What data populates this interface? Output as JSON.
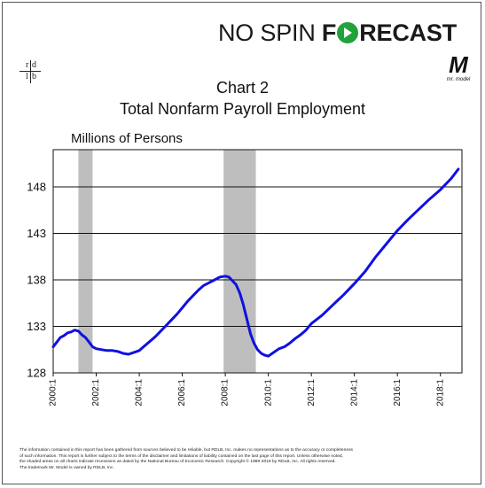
{
  "brand": {
    "part1": "NO SPIN ",
    "part2_a": "F",
    "part2_b": "RECAST",
    "accent_color": "#1fa33a",
    "logo_left_letters": [
      "r",
      "d",
      "l",
      "b"
    ],
    "logo_right": "M",
    "logo_right_sub": "mr. model"
  },
  "chart_data": {
    "type": "line",
    "title": "Chart 2",
    "subtitle": "Total Nonfarm Payroll Employment",
    "ylabel": "Millions of Persons",
    "xlabel": "",
    "ylim": [
      128,
      152
    ],
    "yticks": [
      128,
      133,
      138,
      143,
      148
    ],
    "xlim": [
      2000.0,
      2019.0
    ],
    "xticks": [
      {
        "label": "2000:1",
        "x": 2000.0
      },
      {
        "label": "2002:1",
        "x": 2002.0
      },
      {
        "label": "2004:1",
        "x": 2004.0
      },
      {
        "label": "2006:1",
        "x": 2006.0
      },
      {
        "label": "2008:1",
        "x": 2008.0
      },
      {
        "label": "2010:1",
        "x": 2010.0
      },
      {
        "label": "2012:1",
        "x": 2012.0
      },
      {
        "label": "2014:1",
        "x": 2014.0
      },
      {
        "label": "2016:1",
        "x": 2016.0
      },
      {
        "label": "2018:1",
        "x": 2018.0
      }
    ],
    "grid": true,
    "recessions": [
      {
        "start": 2001.17,
        "end": 2001.83
      },
      {
        "start": 2007.92,
        "end": 2009.42
      }
    ],
    "series_color": "#1010e0",
    "recession_color": "#bebebe",
    "series": [
      {
        "name": "",
        "x": [
          2000.0,
          2000.17,
          2000.33,
          2000.5,
          2000.67,
          2000.83,
          2001.0,
          2001.17,
          2001.33,
          2001.5,
          2001.67,
          2001.83,
          2002.0,
          2002.25,
          2002.5,
          2002.75,
          2003.0,
          2003.25,
          2003.5,
          2003.75,
          2004.0,
          2004.25,
          2004.5,
          2004.75,
          2005.0,
          2005.25,
          2005.5,
          2005.75,
          2006.0,
          2006.25,
          2006.5,
          2006.75,
          2007.0,
          2007.25,
          2007.5,
          2007.75,
          2008.0,
          2008.17,
          2008.33,
          2008.5,
          2008.67,
          2008.83,
          2009.0,
          2009.17,
          2009.33,
          2009.5,
          2009.67,
          2009.83,
          2010.0,
          2010.25,
          2010.5,
          2010.75,
          2011.0,
          2011.25,
          2011.5,
          2011.75,
          2012.0,
          2012.5,
          2013.0,
          2013.5,
          2014.0,
          2014.5,
          2015.0,
          2015.5,
          2016.0,
          2016.5,
          2017.0,
          2017.5,
          2018.0,
          2018.5,
          2018.83
        ],
        "values": [
          130.8,
          131.3,
          131.8,
          132.0,
          132.3,
          132.4,
          132.6,
          132.5,
          132.1,
          131.8,
          131.3,
          130.8,
          130.6,
          130.5,
          130.4,
          130.4,
          130.3,
          130.1,
          130.0,
          130.2,
          130.4,
          130.9,
          131.4,
          131.9,
          132.5,
          133.1,
          133.7,
          134.3,
          135.0,
          135.7,
          136.3,
          136.9,
          137.4,
          137.7,
          138.0,
          138.3,
          138.4,
          138.3,
          137.9,
          137.5,
          136.6,
          135.4,
          133.8,
          132.2,
          131.2,
          130.5,
          130.1,
          129.9,
          129.8,
          130.2,
          130.6,
          130.8,
          131.2,
          131.7,
          132.1,
          132.6,
          133.3,
          134.2,
          135.3,
          136.4,
          137.6,
          138.9,
          140.5,
          141.9,
          143.3,
          144.5,
          145.6,
          146.7,
          147.7,
          148.9,
          149.9
        ]
      }
    ]
  },
  "footnote": {
    "line1": "The information contained in this report has been gathered from sources believed to be reliable, but RDLB, Inc. makes no representations as to the accuracy or completeness",
    "line2": "of such information. This report is further subject to the terms of the disclaimer and limitations of liability contained on the last page of this report. Unless otherwise noted,",
    "line3": "the shaded areas on all charts indicate recessions as dated by the National Bureau of Economic Research. Copyright © 1989-2018 by RDLB, Inc. All rights reserved.",
    "line4": "The trademark Mr. Model is owned by RDLB, Inc."
  }
}
